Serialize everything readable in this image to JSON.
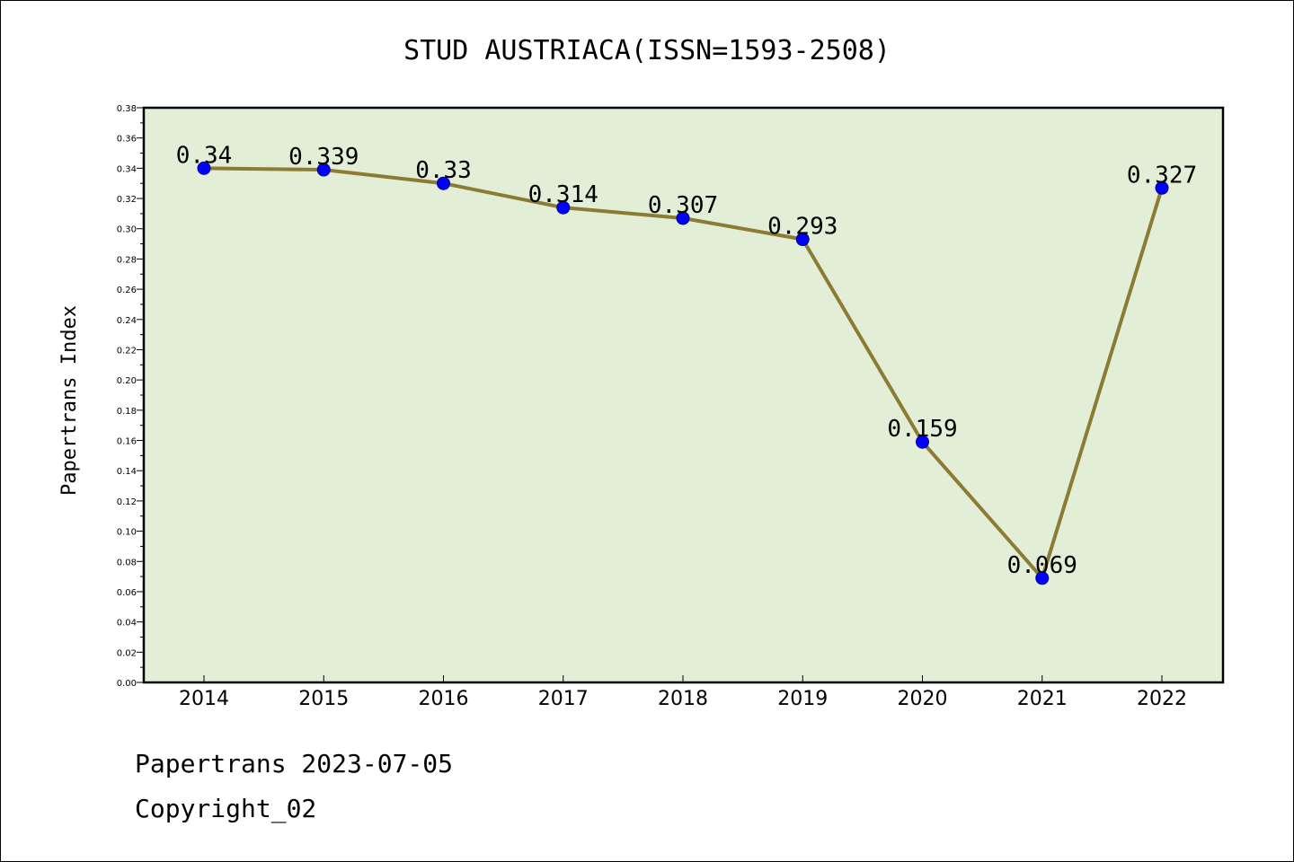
{
  "footer": {
    "line1": "Papertrans 2023-07-05",
    "line2": "Copyright_02"
  },
  "colors": {
    "plot_bg": "#e2efd6",
    "line": "#8b7b33",
    "marker": "#0000ff",
    "axis": "#000000"
  },
  "chart_data": {
    "type": "line",
    "title": "STUD AUSTRIACA(ISSN=1593-2508)",
    "xlabel": "",
    "ylabel": "Papertrans Index",
    "categories": [
      "2014",
      "2015",
      "2016",
      "2017",
      "2018",
      "2019",
      "2020",
      "2021",
      "2022"
    ],
    "values": [
      0.34,
      0.339,
      0.33,
      0.314,
      0.307,
      0.293,
      0.159,
      0.069,
      0.327
    ],
    "value_labels": [
      "0.34",
      "0.339",
      "0.33",
      "0.314",
      "0.307",
      "0.293",
      "0.159",
      "0.069",
      "0.327"
    ],
    "ylim": [
      0,
      0.38
    ],
    "yticks": [
      "0.00",
      "0.02",
      "0.04",
      "0.06",
      "0.08",
      "0.10",
      "0.12",
      "0.14",
      "0.16",
      "0.18",
      "0.20",
      "0.22",
      "0.24",
      "0.26",
      "0.28",
      "0.30",
      "0.32",
      "0.34",
      "0.36",
      "0.38"
    ],
    "grid": false,
    "legend": "none"
  }
}
